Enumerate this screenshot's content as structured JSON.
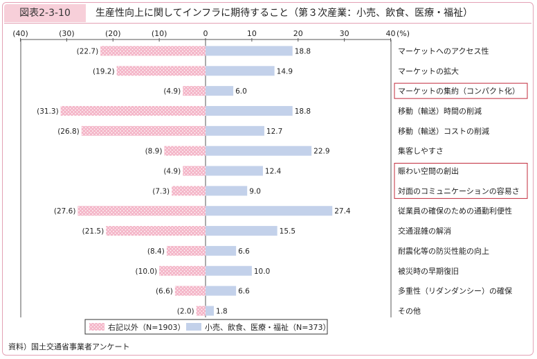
{
  "figure": {
    "label": "図表2-3-10",
    "title": "生産性向上に関してインフラに期待すること（第３次産業：小売、飲食、医療・福祉）",
    "source": "資料）国土交通省事業者アンケート"
  },
  "chart_data": {
    "type": "bar",
    "orientation": "horizontal-diverging",
    "unit": "(%)",
    "xlim": [
      -40,
      40
    ],
    "xticks": [
      -40,
      -30,
      -20,
      -10,
      0,
      10,
      20,
      30,
      40
    ],
    "xtick_labels": [
      "(40)",
      "(30)",
      "(20)",
      "(10)",
      "0",
      "10",
      "20",
      "30",
      "40"
    ],
    "categories": [
      "マーケットへのアクセス性",
      "マーケットの拡大",
      "マーケットの集約（コンパクト化）",
      "移動（輸送）時間の削減",
      "移動（輸送）コストの削減",
      "集客しやすさ",
      "賑わい空間の創出",
      "対面のコミュニケーションの容易さ",
      "従業員の確保のための通勤利便性",
      "交通混雑の解消",
      "耐震化等の防災性能の向上",
      "被災時の早期復旧",
      "多重性（リダンダンシー）の確保",
      "その他"
    ],
    "highlighted": [
      2,
      6,
      7
    ],
    "series": [
      {
        "name": "右記以外（N=1903）",
        "color": "#f4b6c8",
        "pattern": "dots",
        "direction": "left",
        "values": [
          22.7,
          19.2,
          4.9,
          31.3,
          26.8,
          8.9,
          4.9,
          7.3,
          27.6,
          21.5,
          8.4,
          10.0,
          6.6,
          2.0
        ],
        "labels": [
          "(22.7)",
          "(19.2)",
          "(4.9)",
          "(31.3)",
          "(26.8)",
          "(8.9)",
          "(4.9)",
          "(7.3)",
          "(27.6)",
          "(21.5)",
          "(8.4)",
          "(10.0)",
          "(6.6)",
          "(2.0)"
        ]
      },
      {
        "name": "小売、飲食、医療・福祉（N=373）",
        "color": "#c3d1ea",
        "pattern": "solid",
        "direction": "right",
        "values": [
          18.8,
          14.9,
          6.0,
          18.8,
          12.7,
          22.9,
          12.4,
          9.0,
          27.4,
          15.5,
          6.6,
          10.0,
          6.6,
          1.8
        ],
        "labels": [
          "18.8",
          "14.9",
          "6.0",
          "18.8",
          "12.7",
          "22.9",
          "12.4",
          "9.0",
          "27.4",
          "15.5",
          "6.6",
          "10.0",
          "6.6",
          "1.8"
        ]
      }
    ],
    "legend": {
      "position": "bottom-center"
    },
    "grid": false,
    "colors": {
      "highlight_border": "#c0283a",
      "axis": "#555555"
    }
  }
}
